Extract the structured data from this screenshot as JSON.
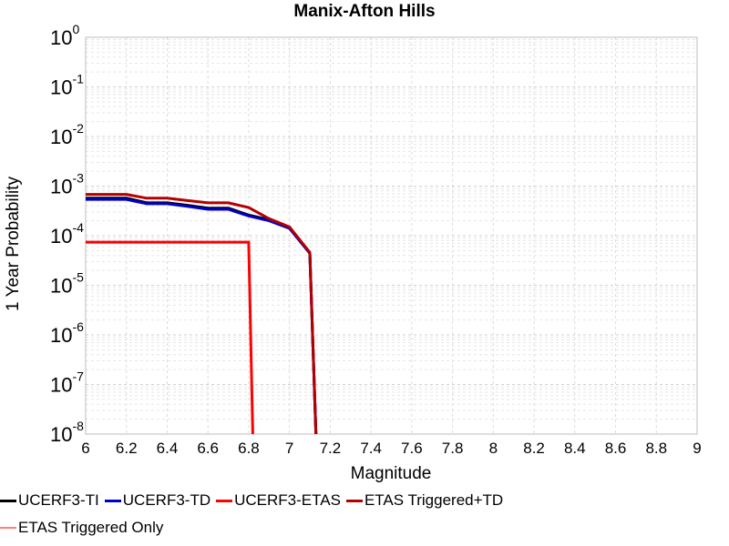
{
  "chart_data": {
    "type": "line",
    "title": "Manix-Afton Hills",
    "xlabel": "Magnitude",
    "ylabel": "1 Year Probability",
    "xlim": [
      6,
      9
    ],
    "ylim_log10": [
      -8,
      0
    ],
    "y_scale": "log",
    "grid": true,
    "legend_position": "bottom",
    "x_ticks": [
      "6",
      "6.2",
      "6.4",
      "6.6",
      "6.8",
      "7",
      "7.2",
      "7.4",
      "7.6",
      "7.8",
      "8",
      "8.2",
      "8.4",
      "8.6",
      "8.8",
      "9"
    ],
    "y_tick_exponents": [
      "0",
      "-1",
      "-2",
      "-3",
      "-4",
      "-5",
      "-6",
      "-7",
      "-8"
    ],
    "y_tick_base": "10",
    "series": [
      {
        "name": "UCERF3-TI",
        "color": "#000000",
        "x": [
          6.0,
          6.2,
          6.3,
          6.4,
          6.5,
          6.6,
          6.7,
          6.8,
          6.9,
          7.0,
          7.1,
          7.13
        ],
        "y": [
          0.00057,
          0.00057,
          0.00046,
          0.00046,
          0.00041,
          0.00036,
          0.00036,
          0.00026,
          0.00021,
          0.000145,
          4.5e-05,
          1e-08
        ]
      },
      {
        "name": "UCERF3-TD",
        "color": "#0000cc",
        "x": [
          6.0,
          6.2,
          6.3,
          6.4,
          6.5,
          6.6,
          6.7,
          6.8,
          6.9,
          7.0,
          7.1,
          7.13
        ],
        "y": [
          0.00054,
          0.00054,
          0.00044,
          0.00044,
          0.00039,
          0.00034,
          0.00034,
          0.00025,
          0.0002,
          0.00014,
          4.4e-05,
          1e-08
        ]
      },
      {
        "name": "UCERF3-ETAS",
        "color": "#ff0000",
        "x": [
          6.0,
          6.8,
          6.82
        ],
        "y": [
          7.4e-05,
          7.4e-05,
          1e-08
        ]
      },
      {
        "name": "ETAS Triggered+TD",
        "color": "#b30000",
        "x": [
          6.0,
          6.2,
          6.3,
          6.4,
          6.5,
          6.6,
          6.7,
          6.8,
          6.9,
          7.0,
          7.1,
          7.13
        ],
        "y": [
          0.00068,
          0.00068,
          0.00057,
          0.00057,
          0.00051,
          0.00046,
          0.00046,
          0.00037,
          0.00022,
          0.00015,
          4.6e-05,
          1e-08
        ]
      },
      {
        "name": "ETAS Triggered Only",
        "color": "#ff8080",
        "x": [],
        "y": []
      }
    ]
  }
}
